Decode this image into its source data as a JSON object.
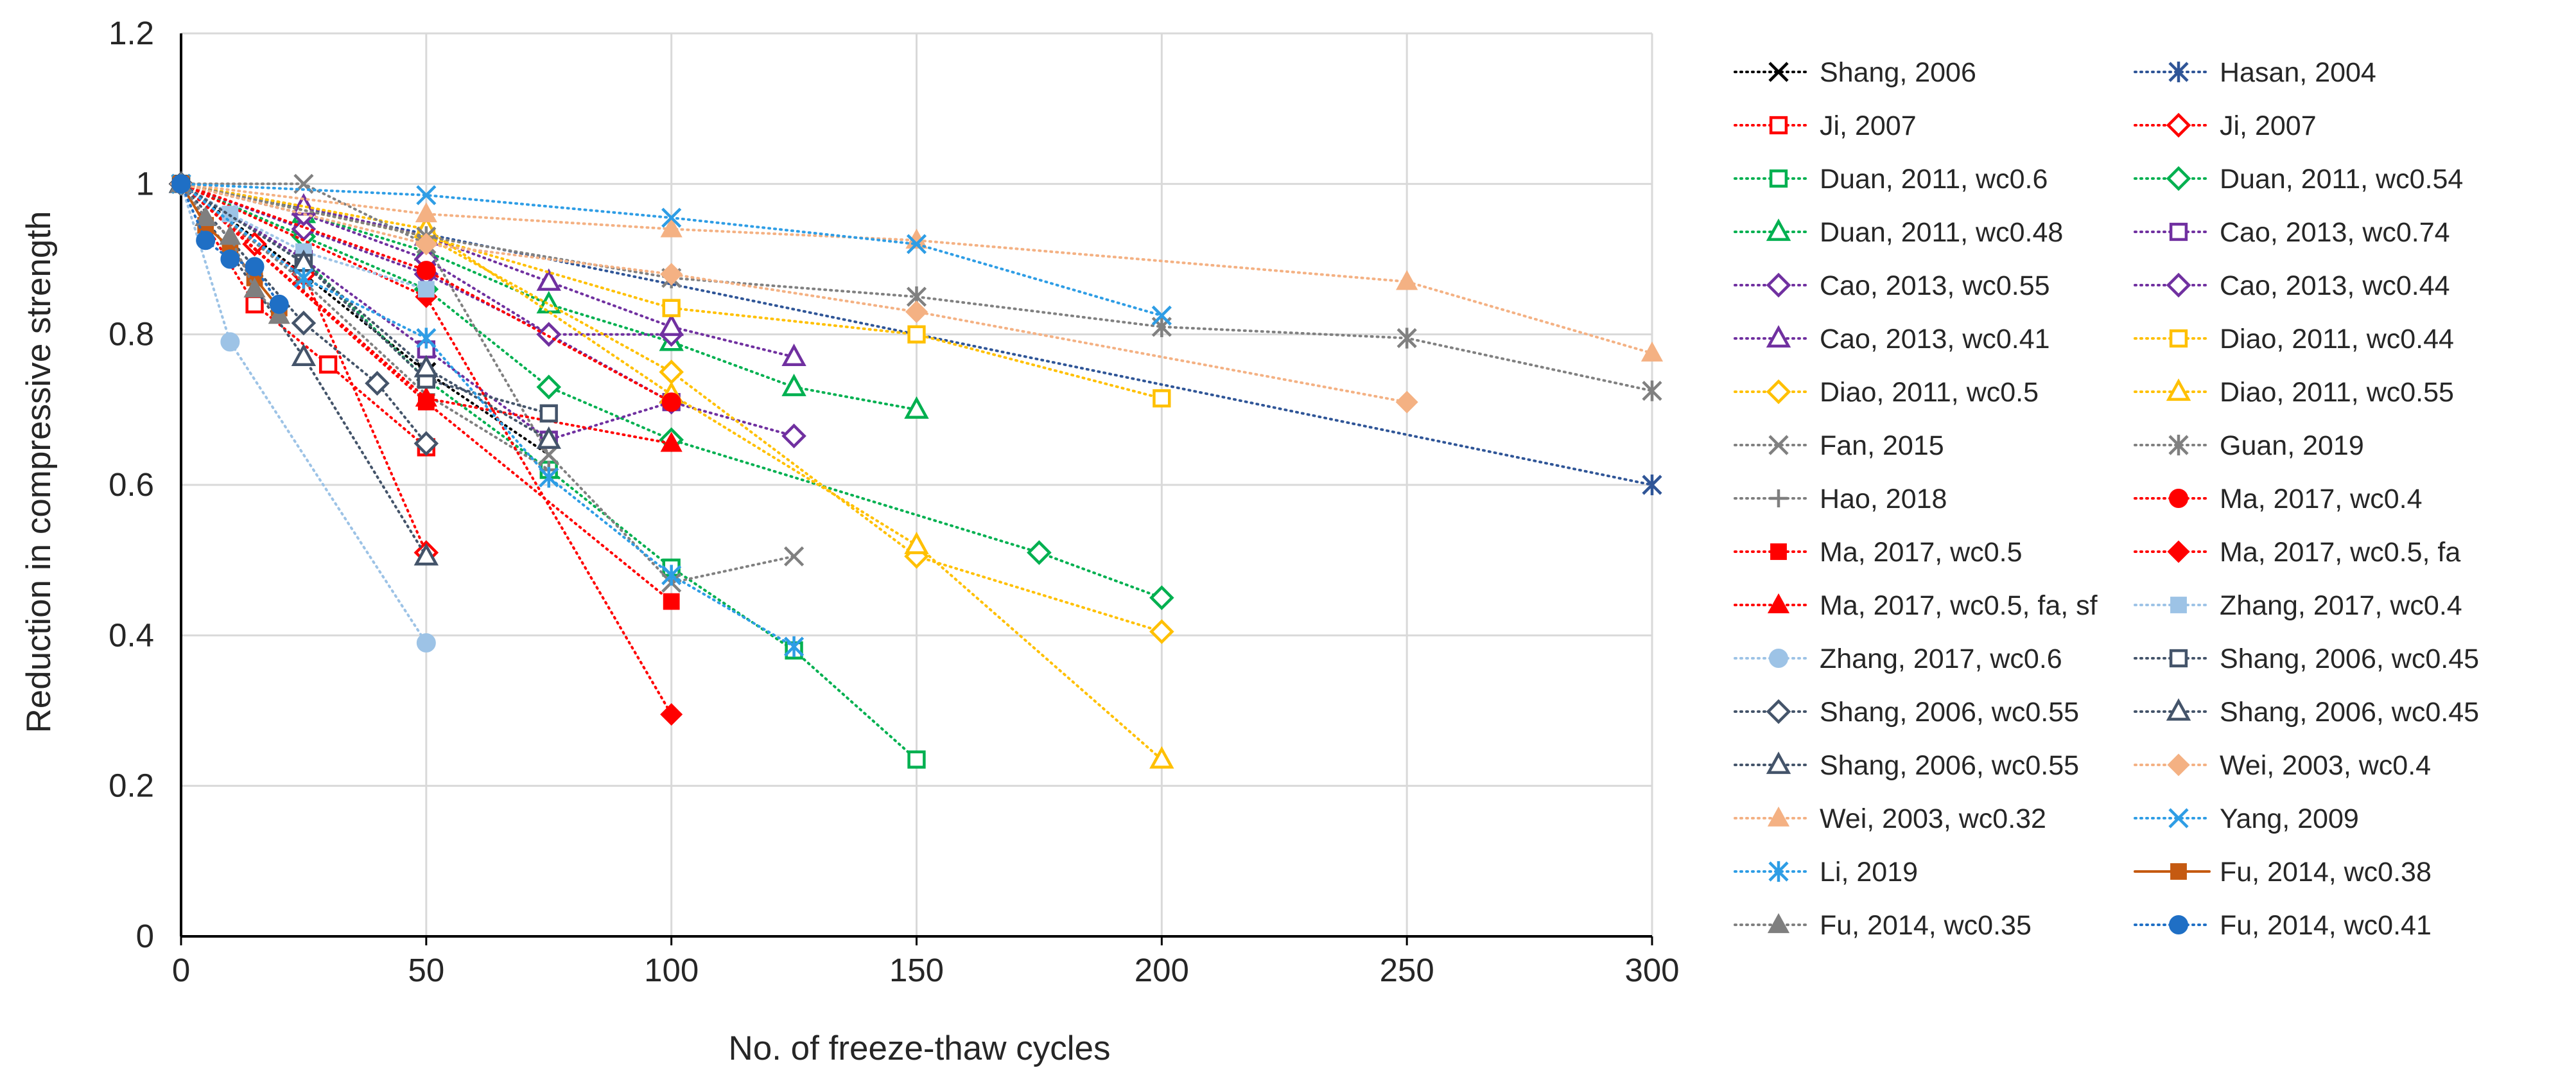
{
  "chart_data": {
    "type": "scatter",
    "xlabel": "No. of freeze-thaw cycles",
    "ylabel": "Reduction in compressive strength",
    "xlim": [
      0,
      300
    ],
    "ylim": [
      0,
      1.2
    ],
    "x_ticks": [
      0,
      50,
      100,
      150,
      200,
      250,
      300
    ],
    "y_ticks": [
      0,
      0.2,
      0.4,
      0.6,
      0.8,
      1,
      1.2
    ],
    "x_tick_labels": [
      "0",
      "50",
      "100",
      "150",
      "200",
      "250",
      "300"
    ],
    "y_tick_labels": [
      "0",
      "0.2",
      "0.4",
      "0.6",
      "0.8",
      "1",
      "1.2"
    ],
    "grid": true,
    "legend_position": "right",
    "series": [
      {
        "name": "Shang, 2006",
        "color": "#000000",
        "marker": "x",
        "line": "dotted",
        "x": [
          0,
          25,
          50,
          75
        ],
        "y": [
          1,
          0.88,
          0.75,
          0.64
        ]
      },
      {
        "name": "Hasan, 2004",
        "color": "#2f5597",
        "marker": "asterisk",
        "line": "dotted",
        "x": [
          0,
          300
        ],
        "y": [
          1,
          0.6
        ]
      },
      {
        "name": "Ji, 2007",
        "color": "#ff0000",
        "marker": "square-open",
        "line": "dotted",
        "x": [
          0,
          15,
          30,
          50
        ],
        "y": [
          1,
          0.84,
          0.76,
          0.65
        ]
      },
      {
        "name": "Ji, 2007",
        "color": "#ff0000",
        "marker": "diamond-open",
        "line": "dotted",
        "x": [
          0,
          15,
          25,
          50
        ],
        "y": [
          1,
          0.92,
          0.88,
          0.51
        ]
      },
      {
        "name": "Duan, 2011, wc0.6",
        "color": "#00b050",
        "marker": "square-open",
        "line": "dotted",
        "x": [
          0,
          25,
          50,
          75,
          100,
          125,
          150
        ],
        "y": [
          1,
          0.9,
          0.74,
          0.62,
          0.49,
          0.38,
          0.235
        ]
      },
      {
        "name": "Duan, 2011, wc0.54",
        "color": "#00b050",
        "marker": "diamond-open",
        "line": "dotted",
        "x": [
          0,
          25,
          50,
          75,
          100,
          175,
          200
        ],
        "y": [
          1,
          0.93,
          0.86,
          0.73,
          0.66,
          0.51,
          0.45
        ]
      },
      {
        "name": "Duan, 2011, wc0.48",
        "color": "#00b050",
        "marker": "triangle-open",
        "line": "dotted",
        "x": [
          0,
          25,
          50,
          75,
          100,
          125,
          150
        ],
        "y": [
          1,
          0.96,
          0.91,
          0.84,
          0.79,
          0.73,
          0.7
        ]
      },
      {
        "name": "Cao, 2013, wc0.74",
        "color": "#7030a0",
        "marker": "square-open",
        "line": "dotted",
        "x": [
          0,
          25,
          50,
          75,
          100
        ],
        "y": [
          1,
          0.9,
          0.78,
          0.66,
          0.71
        ]
      },
      {
        "name": "Cao, 2013, wc0.55",
        "color": "#7030a0",
        "marker": "diamond-open",
        "line": "dotted",
        "x": [
          0,
          25,
          50,
          75,
          100,
          125
        ],
        "y": [
          1,
          0.94,
          0.88,
          0.8,
          0.71,
          0.665
        ]
      },
      {
        "name": "Cao, 2013, wc0.44",
        "color": "#7030a0",
        "marker": "diamond-open",
        "line": "dotted",
        "x": [
          0,
          25,
          50,
          75,
          100
        ],
        "y": [
          1,
          0.96,
          0.9,
          0.8,
          0.8
        ]
      },
      {
        "name": "Cao, 2013, wc0.41",
        "color": "#7030a0",
        "marker": "triangle-open",
        "line": "dotted",
        "x": [
          0,
          25,
          50,
          75,
          100,
          125
        ],
        "y": [
          1,
          0.97,
          0.93,
          0.87,
          0.81,
          0.77
        ]
      },
      {
        "name": "Diao, 2011, wc0.44",
        "color": "#ffc000",
        "marker": "square-open",
        "line": "dotted",
        "x": [
          0,
          50,
          100,
          150,
          200
        ],
        "y": [
          1,
          0.93,
          0.835,
          0.8,
          0.715
        ]
      },
      {
        "name": "Diao, 2011, wc0.5",
        "color": "#ffc000",
        "marker": "diamond-open",
        "line": "dotted",
        "x": [
          0,
          50,
          100,
          150,
          200
        ],
        "y": [
          1,
          0.93,
          0.75,
          0.505,
          0.405
        ]
      },
      {
        "name": "Diao, 2011, wc0.55",
        "color": "#ffc000",
        "marker": "triangle-open",
        "line": "dotted",
        "x": [
          0,
          50,
          100,
          150,
          200
        ],
        "y": [
          1,
          0.94,
          0.72,
          0.52,
          0.235
        ]
      },
      {
        "name": "Fan, 2015",
        "color": "#808080",
        "marker": "x",
        "line": "dotted",
        "x": [
          0,
          25,
          50,
          75,
          100,
          125
        ],
        "y": [
          1,
          1.0,
          0.92,
          0.64,
          0.47,
          0.505
        ]
      },
      {
        "name": "Guan, 2019",
        "color": "#808080",
        "marker": "asterisk",
        "line": "dotted",
        "x": [
          0,
          50,
          100,
          150,
          200,
          250,
          300
        ],
        "y": [
          1,
          0.93,
          0.875,
          0.85,
          0.81,
          0.795,
          0.725
        ]
      },
      {
        "name": "Hao, 2018",
        "color": "#7f7f7f",
        "marker": "plus",
        "line": "dotted",
        "x": [
          0,
          25,
          50,
          75
        ],
        "y": [
          1,
          0.87,
          0.72,
          0.62
        ]
      },
      {
        "name": "Ma, 2017, wc0.4",
        "color": "#ff0000",
        "marker": "circle",
        "line": "dotted",
        "x": [
          0,
          50,
          100
        ],
        "y": [
          1,
          0.885,
          0.71
        ]
      },
      {
        "name": "Ma, 2017, wc0.5",
        "color": "#ff0000",
        "marker": "square",
        "line": "dotted",
        "x": [
          0,
          50,
          100
        ],
        "y": [
          1,
          0.71,
          0.445
        ]
      },
      {
        "name": "Ma, 2017, wc0.5, fa",
        "color": "#ff0000",
        "marker": "diamond",
        "line": "dotted",
        "x": [
          0,
          50,
          100
        ],
        "y": [
          1,
          0.85,
          0.295
        ]
      },
      {
        "name": "Ma, 2017, wc0.5, fa, sf",
        "color": "#ff0000",
        "marker": "triangle",
        "line": "dotted",
        "x": [
          0,
          50,
          100
        ],
        "y": [
          1,
          0.715,
          0.655
        ]
      },
      {
        "name": "Zhang, 2017, wc0.4",
        "color": "#9dc3e6",
        "marker": "square",
        "line": "dotted",
        "x": [
          0,
          10,
          25,
          50
        ],
        "y": [
          1,
          0.96,
          0.91,
          0.86
        ]
      },
      {
        "name": "Zhang, 2017, wc0.6",
        "color": "#9dc3e6",
        "marker": "circle",
        "line": "dotted",
        "x": [
          0,
          10,
          50
        ],
        "y": [
          1,
          0.79,
          0.39
        ]
      },
      {
        "name": "Shang, 2006, wc0.45",
        "color": "#44546a",
        "marker": "square-open",
        "line": "dotted",
        "x": [
          0,
          25,
          50,
          75
        ],
        "y": [
          1,
          0.895,
          0.74,
          0.695
        ]
      },
      {
        "name": "Shang, 2006, wc0.55",
        "color": "#44546a",
        "marker": "diamond-open",
        "line": "dotted",
        "x": [
          0,
          25,
          40,
          50
        ],
        "y": [
          1,
          0.815,
          0.735,
          0.655
        ]
      },
      {
        "name": "Shang, 2006, wc0.45",
        "color": "#44546a",
        "marker": "triangle-open",
        "line": "dotted",
        "x": [
          0,
          25,
          50,
          75
        ],
        "y": [
          1,
          0.895,
          0.755,
          0.66
        ]
      },
      {
        "name": "Shang, 2006, wc0.55",
        "color": "#44546a",
        "marker": "triangle-open",
        "line": "dotted",
        "x": [
          0,
          25,
          50
        ],
        "y": [
          1,
          0.77,
          0.505
        ]
      },
      {
        "name": "Wei, 2003, wc0.4",
        "color": "#f4b183",
        "marker": "diamond",
        "line": "dotted",
        "x": [
          0,
          50,
          100,
          150,
          250
        ],
        "y": [
          1,
          0.92,
          0.88,
          0.83,
          0.71
        ]
      },
      {
        "name": "Wei, 2003, wc0.32",
        "color": "#f4b183",
        "marker": "triangle",
        "line": "dotted",
        "x": [
          0,
          50,
          100,
          150,
          250,
          300
        ],
        "y": [
          1,
          0.96,
          0.94,
          0.925,
          0.87,
          0.775
        ]
      },
      {
        "name": "Yang, 2009",
        "color": "#2e9de5",
        "marker": "x",
        "line": "dotted",
        "x": [
          0,
          50,
          100,
          150,
          200
        ],
        "y": [
          1,
          0.985,
          0.955,
          0.92,
          0.825
        ]
      },
      {
        "name": "Li, 2019",
        "color": "#2e9de5",
        "marker": "asterisk",
        "line": "dotted",
        "x": [
          0,
          25,
          50,
          75,
          100,
          125
        ],
        "y": [
          1,
          0.875,
          0.795,
          0.61,
          0.48,
          0.385
        ]
      },
      {
        "name": "Fu, 2014, wc0.38",
        "color": "#c55a11",
        "marker": "square",
        "line": "solid",
        "x": [
          0,
          5,
          10,
          15,
          20
        ],
        "y": [
          1,
          0.945,
          0.915,
          0.875,
          0.835
        ]
      },
      {
        "name": "Fu, 2014, wc0.35",
        "color": "#7f7f7f",
        "marker": "triangle",
        "line": "dotted",
        "x": [
          0,
          5,
          10,
          15,
          20
        ],
        "y": [
          1,
          0.955,
          0.93,
          0.86,
          0.825
        ]
      },
      {
        "name": "Fu, 2014, wc0.41",
        "color": "#1f6fc5",
        "marker": "circle",
        "line": "dotted",
        "x": [
          0,
          5,
          10,
          15,
          20
        ],
        "y": [
          1,
          0.925,
          0.9,
          0.89,
          0.84
        ]
      }
    ]
  }
}
